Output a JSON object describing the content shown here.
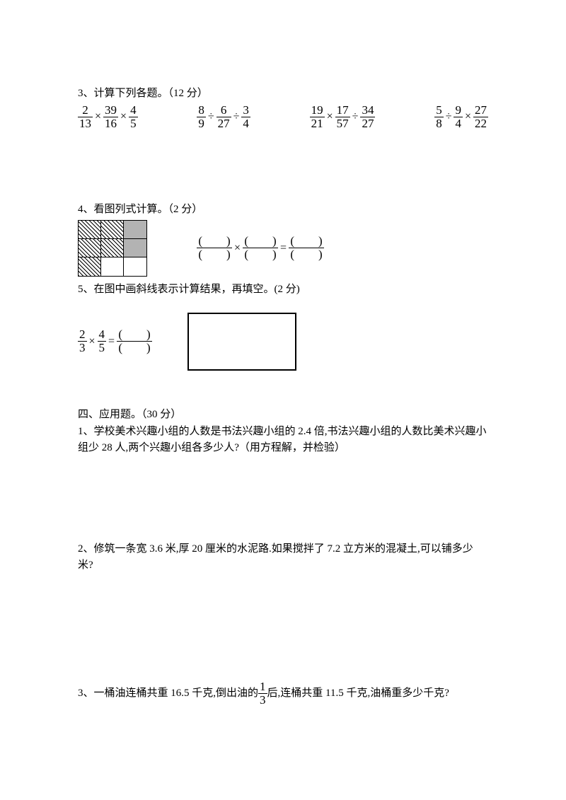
{
  "q3": {
    "title": "3、计算下列各题。（12 分）",
    "exprs": [
      [
        {
          "n": "2",
          "d": "13"
        },
        "×",
        {
          "n": "39",
          "d": "16"
        },
        "×",
        {
          "n": "4",
          "d": "5"
        }
      ],
      [
        {
          "n": "8",
          "d": "9"
        },
        "÷",
        {
          "n": "6",
          "d": "27"
        },
        "÷",
        {
          "n": "3",
          "d": "4"
        }
      ],
      [
        {
          "n": "19",
          "d": "21"
        },
        "×",
        {
          "n": "17",
          "d": "57"
        },
        "÷",
        {
          "n": "34",
          "d": "27"
        }
      ],
      [
        {
          "n": "5",
          "d": "8"
        },
        "÷",
        {
          "n": "9",
          "d": "4"
        },
        "×",
        {
          "n": "27",
          "d": "22"
        }
      ]
    ]
  },
  "q4": {
    "title": "4、看图列式计算。（2 分）",
    "cells": [
      "hatched",
      "hatched",
      "greyed",
      "hatched",
      "hatched",
      "greyed",
      "hatched",
      "white",
      "white"
    ],
    "blank_eq_ops": [
      "×",
      "="
    ]
  },
  "q5": {
    "title": "5、在图中画斜线表示计算结果，再填空。(2 分)",
    "expr": [
      {
        "n": "2",
        "d": "3"
      },
      "×",
      {
        "n": "4",
        "d": "5"
      },
      "="
    ]
  },
  "section4": {
    "heading": "四、应用题。（30 分）",
    "p1": "1、学校美术兴趣小组的人数是书法兴趣小组的 2.4 倍,书法兴趣小组的人数比美术兴趣小组少 28 人,两个兴趣小组各多少人?（用方程解，并检验）",
    "p2": "2、修筑一条宽 3.6 米,厚 20 厘米的水泥路.如果搅拌了 7.2 立方米的混凝土,可以铺多少米?",
    "p3_a": "3、一桶油连桶共重 16.5 千克,倒出油的",
    "p3_frac": {
      "n": "1",
      "d": "3"
    },
    "p3_b": "后,连桶共重 11.5 千克,油桶重多少千克?"
  },
  "blank_paren": "(  )"
}
